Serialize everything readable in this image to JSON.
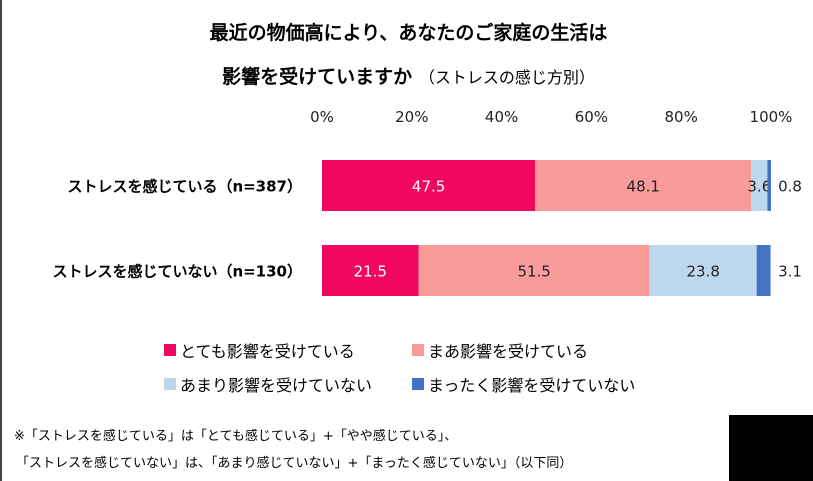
{
  "chart_data": {
    "type": "bar",
    "orientation": "horizontal",
    "stacked": true,
    "title": "最近の物価高により、あなたのご家庭の生活は",
    "title_line2": "影響を受けていますか",
    "subtitle": "（ストレスの感じ方別）",
    "categories": [
      "ストレスを感じている（n=387）",
      "ストレスを感じていない（n=130）"
    ],
    "xlim": [
      0,
      100
    ],
    "x_ticks": [
      "0%",
      "20%",
      "40%",
      "60%",
      "80%",
      "100%"
    ],
    "grid": false,
    "legend_position": "bottom",
    "series": [
      {
        "name": "とても影響を受けている",
        "color": "#f0075f",
        "values": [
          47.5,
          21.5
        ]
      },
      {
        "name": "まあ影響を受けている",
        "color": "#f99b9b",
        "values": [
          48.1,
          51.5
        ]
      },
      {
        "name": "あまり影響を受けていない",
        "color": "#bdd7ee",
        "values": [
          3.6,
          23.8
        ]
      },
      {
        "name": "まったく影響を受けていない",
        "color": "#4472c4",
        "values": [
          0.8,
          3.1
        ]
      }
    ],
    "data_labels": [
      [
        "47.5",
        "48.1",
        "3.6",
        "0.8"
      ],
      [
        "21.5",
        "51.5",
        "23.8",
        "3.1"
      ]
    ]
  },
  "notes": [
    "※「ストレスを感じている」は「とても感じている」+「やや感じている」、",
    "「ストレスを感じていない」は、「あまり感じていない」+「まったく感じていない」（以下同）"
  ]
}
